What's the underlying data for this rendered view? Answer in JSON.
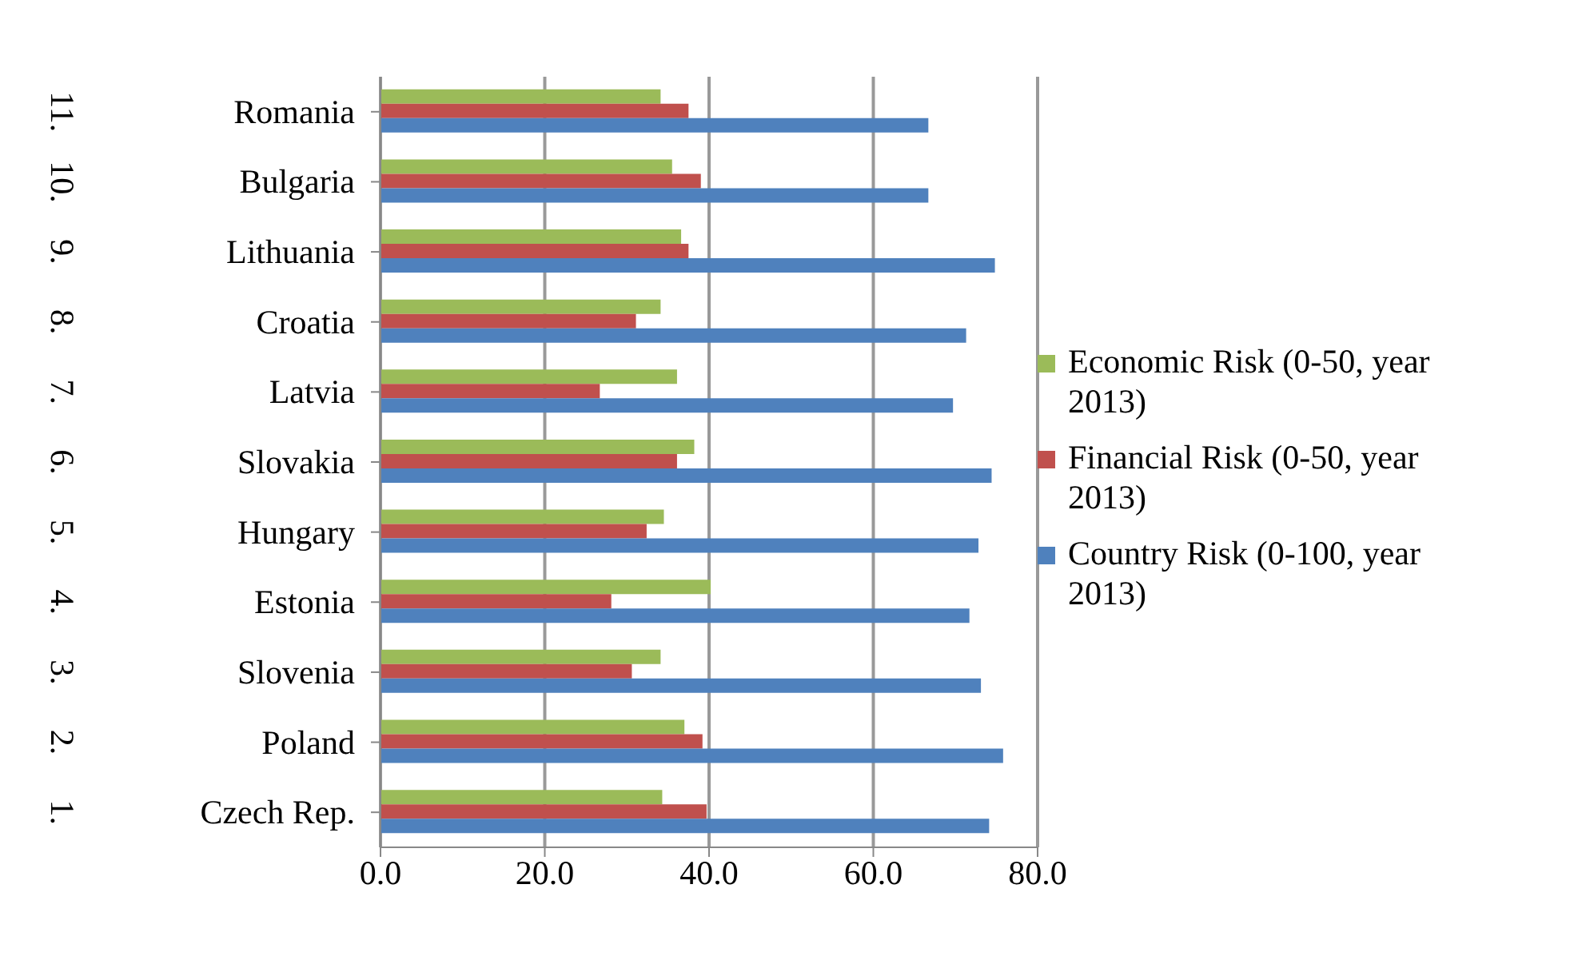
{
  "chart_data": {
    "type": "bar",
    "orientation": "horizontal",
    "categories": [
      "11. Romania",
      "10. Bulgaria",
      "9. Lithuania",
      "8. Croatia",
      "7. Latvia",
      "6. Slovakia",
      "5. Hungary",
      "4. Estonia",
      "3. Slovenia",
      "2. Poland",
      "1. Czech Rep."
    ],
    "series": [
      {
        "name": "Economic Risk (0-50, year 2013)",
        "color": "#9bbb59",
        "values": [
          34.1,
          35.5,
          36.6,
          34.1,
          36.1,
          38.2,
          34.5,
          40.2,
          34.1,
          37.0,
          34.3
        ]
      },
      {
        "name": "Financial Risk (0-50, year 2013)",
        "color": "#c0504d",
        "values": [
          37.5,
          39.0,
          37.5,
          31.1,
          26.7,
          36.1,
          32.4,
          28.1,
          30.6,
          39.2,
          39.7
        ]
      },
      {
        "name": "Country Risk (0-100, year 2013)",
        "color": "#4f81bd",
        "values": [
          66.7,
          66.7,
          74.8,
          71.3,
          69.7,
          74.4,
          72.8,
          71.7,
          73.1,
          75.8,
          74.1
        ]
      }
    ],
    "xlim": [
      0,
      80
    ],
    "xticks": [
      {
        "value": 0,
        "label": "0.0"
      },
      {
        "value": 20,
        "label": "20.0"
      },
      {
        "value": 40,
        "label": "40.0"
      },
      {
        "value": 60,
        "label": "60.0"
      },
      {
        "value": 80,
        "label": "80.0"
      }
    ],
    "grid": "x",
    "legend": "right"
  }
}
